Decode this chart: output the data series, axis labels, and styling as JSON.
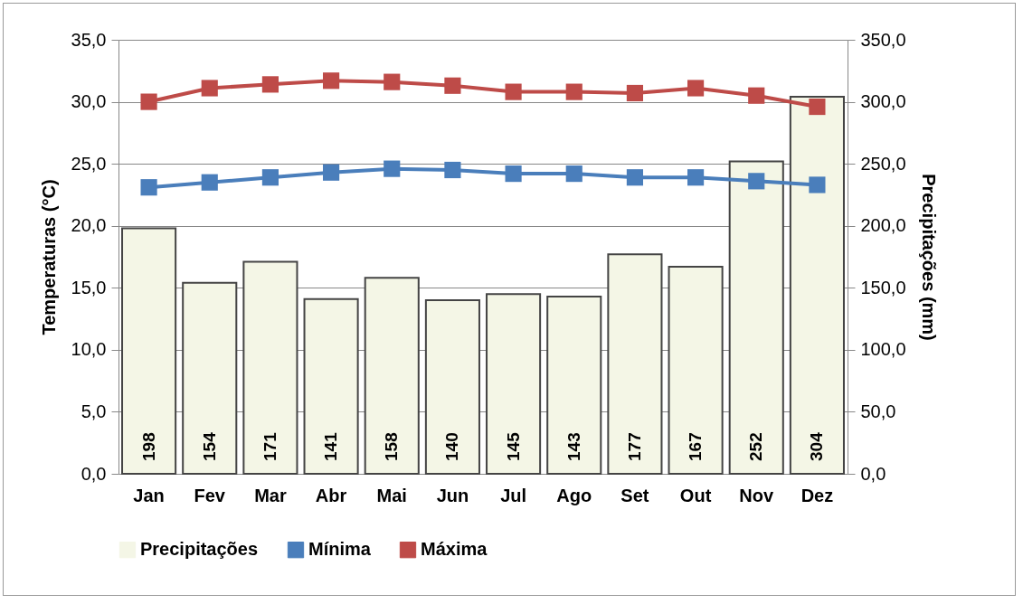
{
  "chart_data": {
    "type": "line",
    "categories": [
      "Jan",
      "Fev",
      "Mar",
      "Abr",
      "Mai",
      "Jun",
      "Jul",
      "Ago",
      "Set",
      "Out",
      "Nov",
      "Dez"
    ],
    "series": [
      {
        "name": "Precipitações",
        "type": "bar",
        "axis": "y2",
        "color": "#f4f6e6",
        "values": [
          198,
          154,
          171,
          141,
          158,
          140,
          145,
          143,
          177,
          167,
          252,
          304
        ],
        "value_labels": [
          "198",
          "154",
          "171",
          "141",
          "158",
          "140",
          "145",
          "143",
          "177",
          "167",
          "252",
          "304"
        ]
      },
      {
        "name": "Mínima",
        "color": "#4a7ebb",
        "values": [
          23.1,
          23.5,
          23.9,
          24.3,
          24.6,
          24.5,
          24.2,
          24.2,
          23.9,
          23.9,
          23.6,
          23.3
        ]
      },
      {
        "name": "Máxima",
        "color": "#be4b48",
        "values": [
          30.0,
          31.1,
          31.4,
          31.7,
          31.6,
          31.3,
          30.8,
          30.8,
          30.7,
          31.1,
          30.5,
          29.6
        ]
      }
    ],
    "ylabel": "Temperaturas (°C)",
    "y2label": "Precipitações (mm)",
    "ylim": [
      0,
      35
    ],
    "yticks": [
      {
        "value": 0,
        "label": "0,0"
      },
      {
        "value": 5,
        "label": "5,0"
      },
      {
        "value": 10,
        "label": "10,0"
      },
      {
        "value": 15,
        "label": "15,0"
      },
      {
        "value": 20,
        "label": "20,0"
      },
      {
        "value": 25,
        "label": "25,0"
      },
      {
        "value": 30,
        "label": "30,0"
      },
      {
        "value": 35,
        "label": "35,0"
      }
    ],
    "y2lim": [
      0,
      350
    ],
    "y2ticks": [
      {
        "value": 0,
        "label": "0,0"
      },
      {
        "value": 50,
        "label": "50,0"
      },
      {
        "value": 100,
        "label": "100,0"
      },
      {
        "value": 150,
        "label": "150,0"
      },
      {
        "value": 200,
        "label": "200,0"
      },
      {
        "value": 250,
        "label": "250,0"
      },
      {
        "value": 300,
        "label": "300,0"
      },
      {
        "value": 350,
        "label": "350,0"
      }
    ],
    "grid": "y",
    "legend": "bottom",
    "marker": "square",
    "line_style": "solid"
  }
}
